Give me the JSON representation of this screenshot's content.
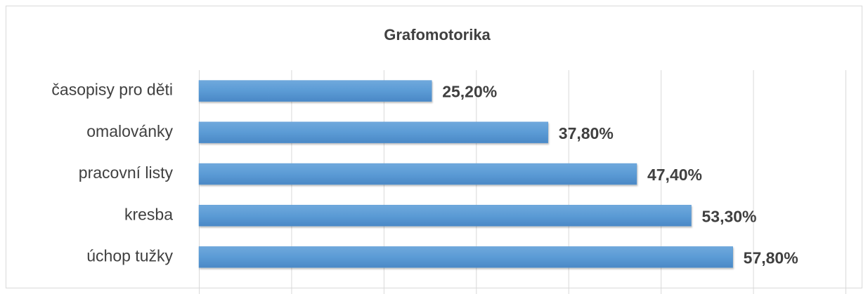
{
  "chart_data": {
    "type": "bar",
    "orientation": "horizontal",
    "title": "Grafomotorika",
    "categories": [
      "časopisy pro děti",
      "omalovánky",
      "pracovní listy",
      "kresba",
      "úchop tužky"
    ],
    "values": [
      25.2,
      37.8,
      47.4,
      53.3,
      57.8
    ],
    "value_labels": [
      "25,20%",
      "37,80%",
      "47,40%",
      "53,30%",
      "57,80%"
    ],
    "color": "#5b9bd5",
    "xlim": [
      0,
      70
    ],
    "xticks": [
      0,
      10,
      20,
      30,
      40,
      50,
      60,
      70
    ],
    "grid": true
  }
}
